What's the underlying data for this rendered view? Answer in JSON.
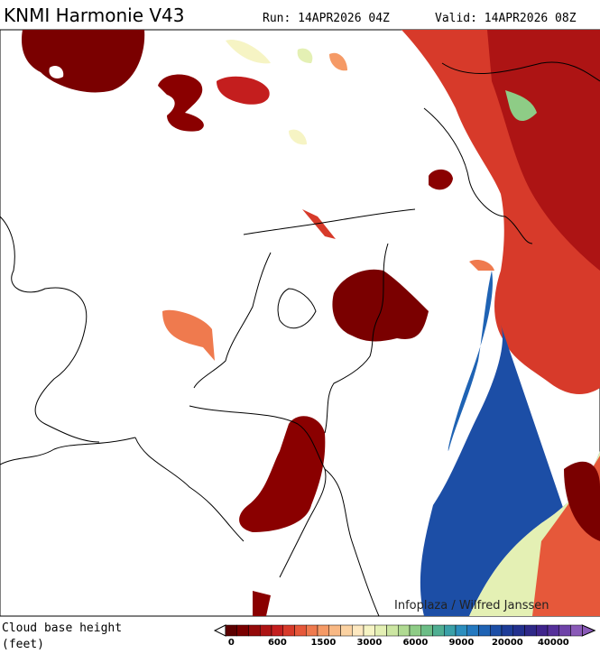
{
  "header": {
    "title": "KNMI Harmonie V43",
    "run": "Run: 14APR2026 04Z",
    "valid": "Valid: 14APR2026 08Z"
  },
  "credit": "Infoplaza / Wilfred Janssen",
  "legend": {
    "title": "Cloud base height",
    "unit": "(feet)",
    "ticks": [
      "0",
      "600",
      "1500",
      "3000",
      "6000",
      "9000",
      "20000",
      "40000"
    ],
    "colors": [
      "#5c0000",
      "#7a0000",
      "#940a0a",
      "#ad1414",
      "#c41e1e",
      "#d73a2a",
      "#e6583a",
      "#ef7a4e",
      "#f59a66",
      "#f8b884",
      "#fbd2a2",
      "#fde8c0",
      "#f6f4c4",
      "#e4f0b4",
      "#cce6a2",
      "#b0da92",
      "#8ecc86",
      "#6cbd86",
      "#4fae92",
      "#3aa0a8",
      "#2c8ebe",
      "#2479c0",
      "#1f63b4",
      "#1c4ea6",
      "#1d3c98",
      "#22308e",
      "#2e2888",
      "#3f248c",
      "#55309a",
      "#6e42a8",
      "#8a5ab8"
    ]
  }
}
